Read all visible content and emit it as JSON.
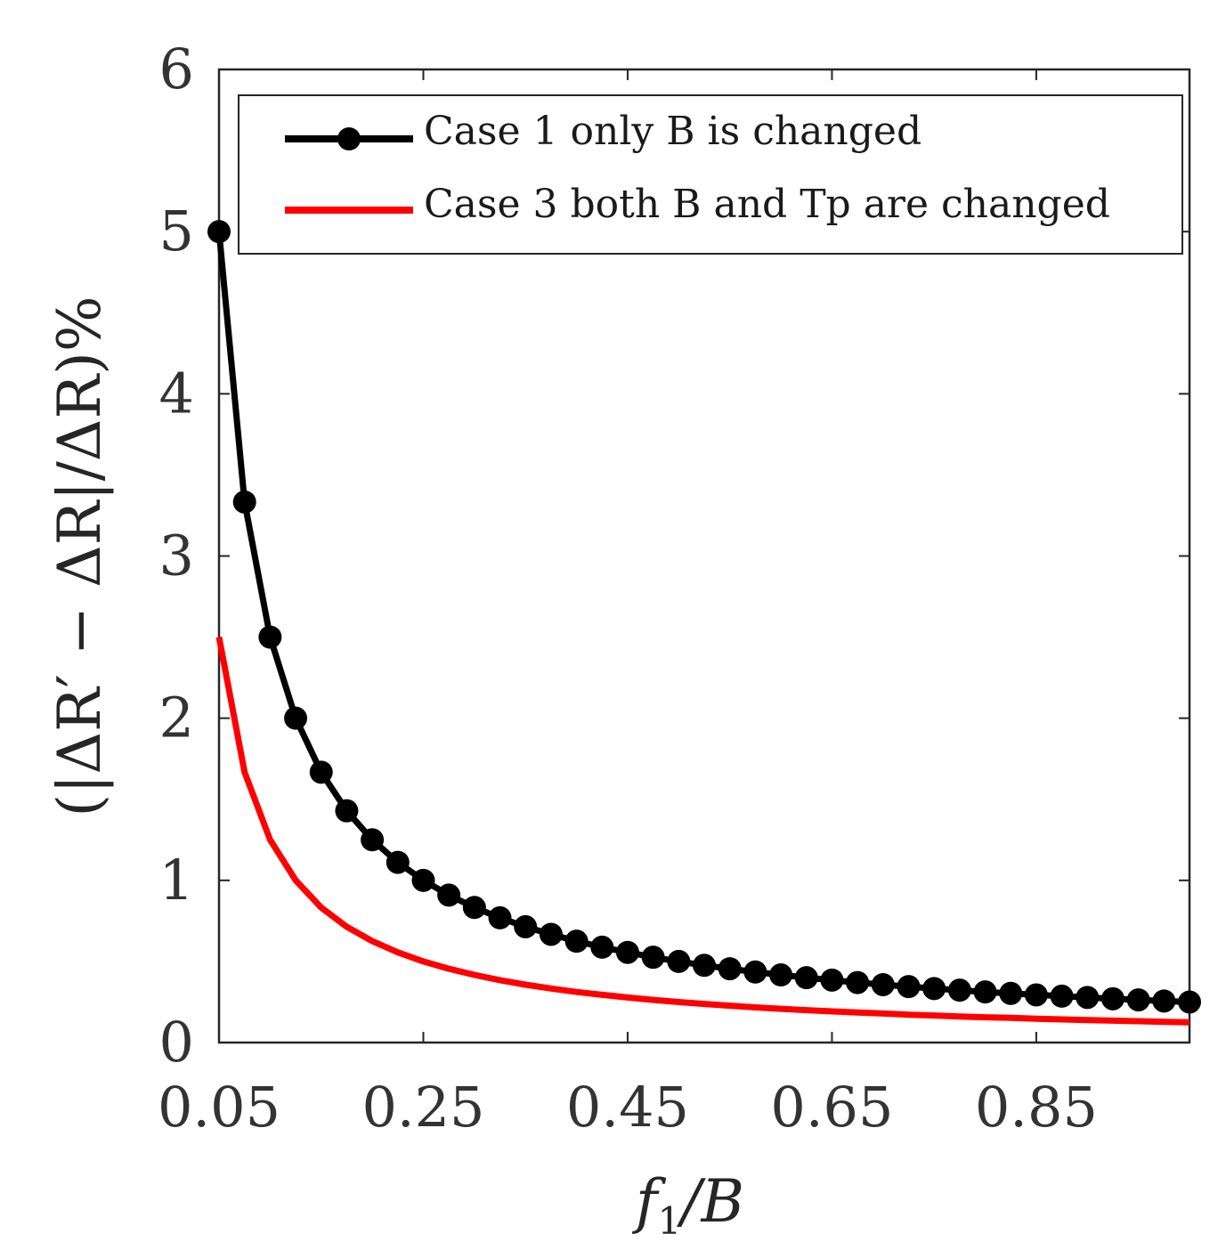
{
  "chart_data": {
    "type": "line",
    "title": "",
    "xlabel": {
      "f": "f",
      "sub": "1",
      "rest": "/B"
    },
    "ylabel": {
      "text": "(|ΔR′ − ΔR|/ΔR)%"
    },
    "xlim": [
      0.05,
      1.0
    ],
    "ylim": [
      0,
      6
    ],
    "grid": false,
    "legend_placement": "top-right",
    "x_ticks": [
      0.05,
      0.25,
      0.45,
      0.65,
      0.85
    ],
    "x_tick_labels": [
      "0.05",
      "0.25",
      "0.45",
      "0.65",
      "0.85"
    ],
    "y_ticks": [
      0,
      1,
      2,
      3,
      4,
      5,
      6
    ],
    "y_tick_labels": [
      "0",
      "1",
      "2",
      "3",
      "4",
      "5",
      "6"
    ],
    "series": [
      {
        "name": "Case 1 only B is changed",
        "color": "#000000",
        "marker": "circle",
        "x": [
          0.05,
          0.075,
          0.1,
          0.125,
          0.15,
          0.175,
          0.2,
          0.225,
          0.25,
          0.275,
          0.3,
          0.325,
          0.35,
          0.375,
          0.4,
          0.425,
          0.45,
          0.475,
          0.5,
          0.525,
          0.55,
          0.575,
          0.6,
          0.625,
          0.65,
          0.675,
          0.7,
          0.725,
          0.75,
          0.775,
          0.8,
          0.825,
          0.85,
          0.875,
          0.9,
          0.925,
          0.95,
          0.975,
          1.0
        ],
        "values": [
          5.0,
          3.333,
          2.5,
          2.0,
          1.667,
          1.429,
          1.25,
          1.111,
          1.0,
          0.909,
          0.833,
          0.769,
          0.714,
          0.667,
          0.625,
          0.588,
          0.556,
          0.526,
          0.5,
          0.476,
          0.455,
          0.435,
          0.417,
          0.4,
          0.385,
          0.37,
          0.357,
          0.345,
          0.333,
          0.323,
          0.312,
          0.303,
          0.294,
          0.286,
          0.278,
          0.27,
          0.263,
          0.256,
          0.25
        ]
      },
      {
        "name": "Case 3 both B and Tp are changed",
        "color": "#ff0000",
        "marker": "none",
        "x": [
          0.05,
          0.075,
          0.1,
          0.125,
          0.15,
          0.175,
          0.2,
          0.225,
          0.25,
          0.275,
          0.3,
          0.325,
          0.35,
          0.375,
          0.4,
          0.425,
          0.45,
          0.475,
          0.5,
          0.525,
          0.55,
          0.575,
          0.6,
          0.625,
          0.65,
          0.675,
          0.7,
          0.725,
          0.75,
          0.775,
          0.8,
          0.825,
          0.85,
          0.875,
          0.9,
          0.925,
          0.95,
          0.975,
          1.0
        ],
        "values": [
          2.5,
          1.667,
          1.25,
          1.0,
          0.833,
          0.714,
          0.625,
          0.556,
          0.5,
          0.455,
          0.417,
          0.385,
          0.357,
          0.333,
          0.312,
          0.294,
          0.278,
          0.263,
          0.25,
          0.238,
          0.227,
          0.217,
          0.208,
          0.2,
          0.192,
          0.185,
          0.179,
          0.172,
          0.167,
          0.161,
          0.156,
          0.152,
          0.147,
          0.143,
          0.139,
          0.135,
          0.132,
          0.128,
          0.125
        ]
      }
    ]
  }
}
